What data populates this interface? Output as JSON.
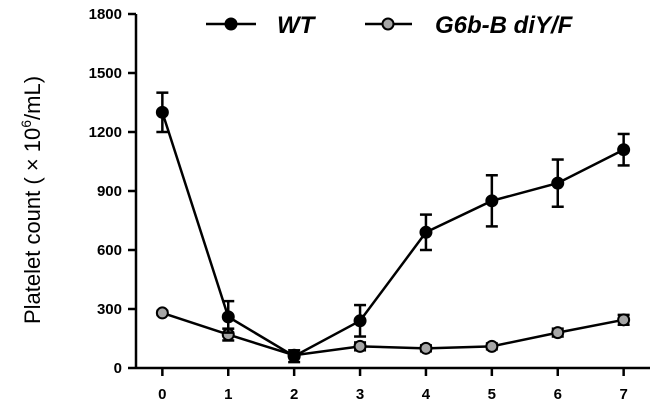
{
  "chart_data": {
    "type": "line",
    "x": [
      0,
      1,
      2,
      3,
      4,
      5,
      6,
      7
    ],
    "xticks": [
      "0",
      "1",
      "2",
      "3",
      "4",
      "5",
      "6",
      "7"
    ],
    "xlim": [
      -0.4,
      7.4
    ],
    "ylim": [
      0,
      1800
    ],
    "yticks": [
      0,
      300,
      600,
      900,
      1200,
      1500,
      1800
    ],
    "ytick_labels": [
      "0",
      "300",
      "600",
      "900",
      "1200",
      "1500",
      "1800"
    ],
    "ylabel": {
      "main": "Platelet count ( × 10",
      "sup": "6",
      "unit": "/mL)"
    },
    "xlabel": "",
    "grid": false,
    "legend_position": "top",
    "series": [
      {
        "name": "WT",
        "marker_fill": "#000000",
        "line_color": "#000000",
        "values": [
          1300,
          260,
          60,
          240,
          690,
          850,
          940,
          1110
        ],
        "err_upper": [
          100,
          80,
          30,
          80,
          90,
          130,
          120,
          80
        ],
        "err_lower": [
          100,
          80,
          30,
          80,
          90,
          130,
          120,
          80
        ]
      },
      {
        "name": "G6b-B diY/F",
        "marker_fill": "#a6a6a6",
        "line_color": "#000000",
        "values": [
          280,
          170,
          65,
          110,
          100,
          110,
          180,
          245
        ],
        "err_upper": [
          10,
          30,
          10,
          20,
          15,
          15,
          20,
          25
        ],
        "err_lower": [
          10,
          30,
          10,
          20,
          15,
          15,
          20,
          25
        ]
      }
    ]
  }
}
